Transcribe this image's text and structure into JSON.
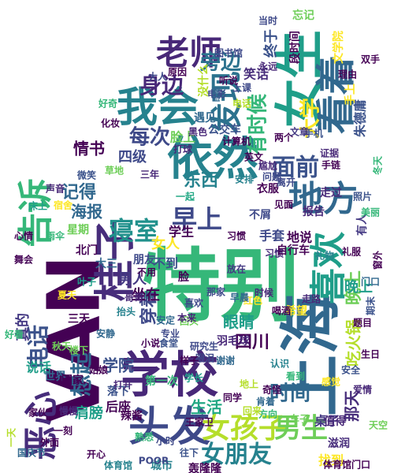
{
  "wordcloud": {
    "words": [
      {
        "text": "VAN",
        "color": "#440154"
      },
      {
        "text": "特别",
        "color": "#35b779"
      },
      {
        "text": "上海",
        "color": "#31688e"
      },
      {
        "text": "学校",
        "color": "#482878"
      },
      {
        "text": "女生",
        "color": "#1f9e89"
      },
      {
        "text": "依然",
        "color": "#26828e"
      },
      {
        "text": "头发",
        "color": "#3e4989"
      },
      {
        "text": "我会",
        "color": "#26828e"
      },
      {
        "text": "看着",
        "color": "#31688e"
      },
      {
        "text": "喜欢",
        "color": "#1f9e89"
      },
      {
        "text": "地方",
        "color": "#31688e"
      },
      {
        "text": "老师",
        "color": "#482878"
      },
      {
        "text": "女孩子",
        "color": "#b5de2b"
      },
      {
        "text": "恶心",
        "color": "#472d7b"
      },
      {
        "text": "告诉",
        "color": "#35b779"
      },
      {
        "text": "桂子",
        "color": "#472d7b"
      },
      {
        "text": "男生",
        "color": "#6ece58"
      },
      {
        "text": "寝室",
        "color": "#21918c"
      },
      {
        "text": "早上",
        "color": "#3e4989"
      },
      {
        "text": "发现",
        "color": "#2c728e"
      },
      {
        "text": "面前",
        "color": "#3b528b"
      },
      {
        "text": "大学",
        "color": "#fde725"
      },
      {
        "text": "女朋友",
        "color": "#26828e"
      },
      {
        "text": "想起",
        "color": "#31688e"
      },
      {
        "text": "电话",
        "color": "#3b528b"
      },
      {
        "text": "时间",
        "color": "#31688e"
      },
      {
        "text": "每次",
        "color": "#3e4989"
      },
      {
        "text": "身边",
        "color": "#482878"
      },
      {
        "text": "旁边",
        "color": "#2c728e"
      },
      {
        "text": "有时候",
        "color": "#35b779"
      },
      {
        "text": "记得",
        "color": "#31688e"
      },
      {
        "text": "东西",
        "color": "#26828e"
      },
      {
        "text": "生活",
        "color": "#22a884"
      },
      {
        "text": "学院",
        "color": "#3b528b"
      },
      {
        "text": "穿着",
        "color": "#3e4989"
      },
      {
        "text": "四川",
        "color": "#440154"
      },
      {
        "text": "晚上",
        "color": "#6ece58"
      },
      {
        "text": "那天",
        "color": "#472d7b"
      },
      {
        "text": "吃火锅",
        "color": "#b5de2b"
      },
      {
        "text": "男人",
        "color": "#443983"
      },
      {
        "text": "女人",
        "color": "#fde725"
      },
      {
        "text": "眼睛",
        "color": "#1f9e89"
      },
      {
        "text": "情书",
        "color": "#440154"
      },
      {
        "text": "海报",
        "color": "#31688e"
      },
      {
        "text": "四级",
        "color": "#3e4989"
      },
      {
        "text": "肩膀",
        "color": "#1f9e89"
      },
      {
        "text": "学生",
        "color": "#440154"
      },
      {
        "text": "手套",
        "color": "#3e4989"
      },
      {
        "text": "笑话",
        "color": "#472d7b"
      },
      {
        "text": "坐在",
        "color": "#440154"
      },
      {
        "text": "真的",
        "color": "#443983"
      },
      {
        "text": "三天",
        "color": "#440154"
      },
      {
        "text": "朋友",
        "color": "#3e4989"
      },
      {
        "text": "大三",
        "color": "#31688e"
      },
      {
        "text": "终于",
        "color": "#3b528b"
      },
      {
        "text": "小时",
        "color": "#3e4989"
      },
      {
        "text": "找到",
        "color": "#fde725"
      },
      {
        "text": "桌子",
        "color": "#443983"
      },
      {
        "text": "晚上",
        "color": "#1f9e89"
      },
      {
        "text": "报告",
        "color": "#482878"
      },
      {
        "text": "衣服",
        "color": "#440154"
      },
      {
        "text": "不屑",
        "color": "#3e4989"
      },
      {
        "text": "有人",
        "color": "#443983"
      },
      {
        "text": "地说",
        "color": "#440154"
      },
      {
        "text": "习惯",
        "color": "#472d7b"
      },
      {
        "text": "公交车",
        "color": "#3b528b"
      },
      {
        "text": "计算机",
        "color": "#440154"
      },
      {
        "text": "脸上",
        "color": "#6ece58"
      },
      {
        "text": "打球",
        "color": "#482878"
      },
      {
        "text": "英文",
        "color": "#440154"
      },
      {
        "text": "离开",
        "color": "#3e4989"
      },
      {
        "text": "问题",
        "color": "#3e4989"
      },
      {
        "text": "说话",
        "color": "#1f9e89"
      },
      {
        "text": "世界",
        "color": "#31688e"
      },
      {
        "text": "回家",
        "color": "#440154"
      },
      {
        "text": "后座",
        "color": "#440154"
      },
      {
        "text": "辣酱",
        "color": "#440154"
      },
      {
        "text": "城市",
        "color": "#26828e"
      },
      {
        "text": "轰隆隆",
        "color": "#440154"
      },
      {
        "text": "体育馆",
        "color": "#26828e"
      },
      {
        "text": "放在",
        "color": "#443983"
      },
      {
        "text": "希望",
        "color": "#fde725"
      },
      {
        "text": "羽毛球",
        "color": "#482878"
      },
      {
        "text": "研究生",
        "color": "#3e4989"
      },
      {
        "text": "食堂",
        "color": "#3b528b"
      },
      {
        "text": "值得",
        "color": "#482878"
      },
      {
        "text": "滋润",
        "color": "#472d7b"
      },
      {
        "text": "肯着",
        "color": "#31688e"
      },
      {
        "text": "那家",
        "color": "#3e4989"
      },
      {
        "text": "不到",
        "color": "#3b528b"
      },
      {
        "text": "北门",
        "color": "#440154"
      },
      {
        "text": "自行车",
        "color": "#440154"
      },
      {
        "text": "手上",
        "color": "#fde725"
      },
      {
        "text": "没什么",
        "color": "#b5de2b"
      },
      {
        "text": "遇见",
        "color": "#31688e"
      },
      {
        "text": "黑色",
        "color": "#482878"
      },
      {
        "text": "当时",
        "color": "#3e4989"
      },
      {
        "text": "段时间",
        "color": "#440154"
      },
      {
        "text": "朱德庸",
        "color": "#3b528b"
      },
      {
        "text": "忘记",
        "color": "#6ece58"
      },
      {
        "text": "两个",
        "color": "#440154"
      },
      {
        "text": "一起",
        "color": "#22a884"
      },
      {
        "text": "专业",
        "color": "#3e4989"
      },
      {
        "text": "星期",
        "color": "#6ece58"
      },
      {
        "text": "走过",
        "color": "#482878"
      },
      {
        "text": "手链",
        "color": "#440154"
      },
      {
        "text": "文学院",
        "color": "#fde725"
      },
      {
        "text": "手机",
        "color": "#3b528b"
      },
      {
        "text": "三年",
        "color": "#482878"
      },
      {
        "text": "看到",
        "color": "#35b779"
      },
      {
        "text": "开心",
        "color": "#440154"
      },
      {
        "text": "POOR",
        "color": "#3e4989"
      },
      {
        "text": "体育馆门口",
        "color": "#440154"
      },
      {
        "text": "第一次",
        "color": "#35b779"
      },
      {
        "text": "落下",
        "color": "#3b528b"
      },
      {
        "text": "叶子",
        "color": "#1f9e89"
      },
      {
        "text": "舞会",
        "color": "#440154"
      },
      {
        "text": "双手",
        "color": "#440154"
      },
      {
        "text": "文章",
        "color": "#443983"
      },
      {
        "text": "证据",
        "color": "#482878"
      },
      {
        "text": "图书馆",
        "color": "#3e4989"
      },
      {
        "text": "尴尬",
        "color": "#482878"
      },
      {
        "text": "不用",
        "color": "#440154"
      },
      {
        "text": "脸",
        "color": "#440154"
      },
      {
        "text": "认识",
        "color": "#26828e"
      },
      {
        "text": "谢谢",
        "color": "#31688e"
      },
      {
        "text": "感觉",
        "color": "#fde725"
      },
      {
        "text": "回头",
        "color": "#6ece58"
      },
      {
        "text": "地上",
        "color": "#b5de2b"
      },
      {
        "text": "期末",
        "color": "#3b528b"
      },
      {
        "text": "理由",
        "color": "#440154"
      },
      {
        "text": "本来",
        "color": "#482878"
      },
      {
        "text": "喜欢",
        "color": "#3e4989"
      },
      {
        "text": "安静",
        "color": "#31688e"
      },
      {
        "text": "家伙",
        "color": "#440154"
      },
      {
        "text": "车子",
        "color": "#6ece58"
      },
      {
        "text": "雨伞",
        "color": "#35b779"
      },
      {
        "text": "习惯",
        "color": "#440154"
      },
      {
        "text": "好看",
        "color": "#35b779"
      },
      {
        "text": "一刻",
        "color": "#440154"
      },
      {
        "text": "打开",
        "color": "#482878"
      },
      {
        "text": "安定",
        "color": "#31688e"
      },
      {
        "text": "国庆节",
        "color": "#31688e"
      },
      {
        "text": "一天",
        "color": "#b5de2b"
      },
      {
        "text": "夏天",
        "color": "#fde725"
      },
      {
        "text": "秋天",
        "color": "#6ece58"
      },
      {
        "text": "大人",
        "color": "#3e4989"
      },
      {
        "text": "小说",
        "color": "#440154"
      },
      {
        "text": "哥哥",
        "color": "#482878"
      },
      {
        "text": "抬头",
        "color": "#26828e"
      },
      {
        "text": "冬天",
        "color": "#35b779"
      },
      {
        "text": "窗外",
        "color": "#440154"
      },
      {
        "text": "照片",
        "color": "#3b528b"
      },
      {
        "text": "礼服",
        "color": "#440154"
      },
      {
        "text": "门口",
        "color": "#31688e"
      },
      {
        "text": "床上",
        "color": "#1f9e89"
      },
      {
        "text": "心情",
        "color": "#440154"
      },
      {
        "text": "声音",
        "color": "#482878"
      },
      {
        "text": "电影",
        "color": "#3e4989"
      },
      {
        "text": "原因",
        "color": "#440154"
      },
      {
        "text": "好奇",
        "color": "#35b779"
      },
      {
        "text": "化妆",
        "color": "#440154"
      },
      {
        "text": "草地",
        "color": "#6ece58"
      },
      {
        "text": "微笑",
        "color": "#3b528b"
      },
      {
        "text": "宿舍",
        "color": "#fde725"
      },
      {
        "text": "安排",
        "color": "#26828e"
      },
      {
        "text": "题目",
        "color": "#440154"
      },
      {
        "text": "目睹",
        "color": "#31688e"
      },
      {
        "text": "永远",
        "color": "#482878"
      },
      {
        "text": "上课",
        "color": "#3e4989"
      },
      {
        "text": "听说",
        "color": "#440154"
      },
      {
        "text": "电话",
        "color": "#b5de2b"
      },
      {
        "text": "见面",
        "color": "#440154"
      },
      {
        "text": "美丽",
        "color": "#35b779"
      },
      {
        "text": "走路",
        "color": "#482878"
      },
      {
        "text": "生日",
        "color": "#440154"
      },
      {
        "text": "天空",
        "color": "#6ece58"
      },
      {
        "text": "安全",
        "color": "#3b528b"
      },
      {
        "text": "礼物",
        "color": "#26828e"
      },
      {
        "text": "喝酒",
        "color": "#440154"
      },
      {
        "text": "红色",
        "color": "#fde725"
      },
      {
        "text": "早晨",
        "color": "#31688e"
      },
      {
        "text": "时候",
        "color": "#482878"
      },
      {
        "text": "奇怪",
        "color": "#440154"
      },
      {
        "text": "方向",
        "color": "#35b779"
      },
      {
        "text": "眼泪",
        "color": "#3e4989"
      },
      {
        "text": "样子",
        "color": "#440154"
      },
      {
        "text": "学长",
        "color": "#1f9e89"
      },
      {
        "text": "姑娘",
        "color": "#440154"
      },
      {
        "text": "楼下",
        "color": "#6ece58"
      },
      {
        "text": "慢慢",
        "color": "#482878"
      },
      {
        "text": "外面",
        "color": "#440154"
      },
      {
        "text": "往下",
        "color": "#3b528b"
      },
      {
        "text": "王家卫",
        "color": "#440154"
      },
      {
        "text": "熟悉",
        "color": "#35b779"
      },
      {
        "text": "同学",
        "color": "#440154"
      },
      {
        "text": "回来",
        "color": "#b5de2b"
      },
      {
        "text": "爱情",
        "color": "#482878"
      }
    ]
  }
}
